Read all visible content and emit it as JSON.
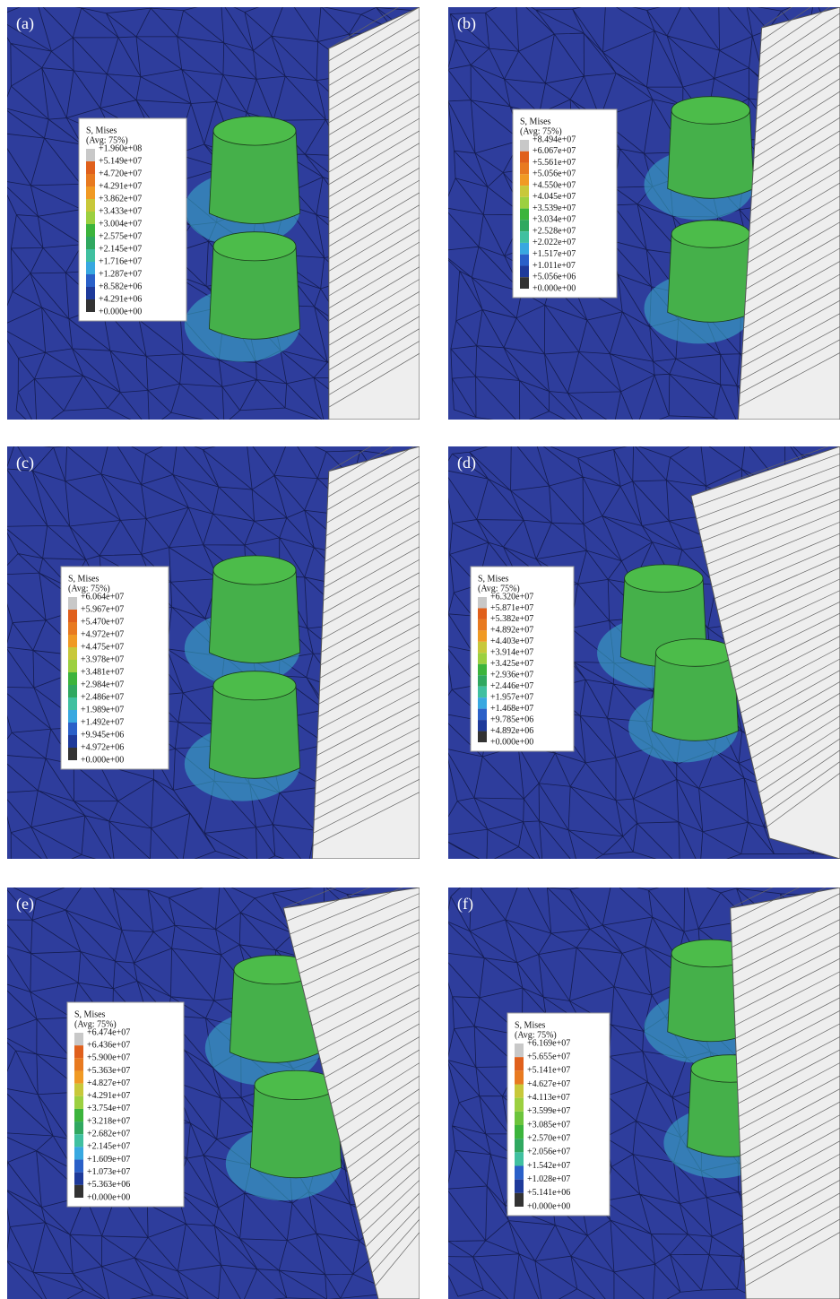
{
  "panels": [
    {
      "label": "(a)",
      "legend": {
        "title": "S, Mises",
        "subtitle": "(Avg: 75%)",
        "values": [
          "+1.960e+08",
          "+5.149e+07",
          "+4.720e+07",
          "+4.291e+07",
          "+3.862e+07",
          "+3.433e+07",
          "+3.004e+07",
          "+2.575e+07",
          "+2.145e+07",
          "+1.716e+07",
          "+1.287e+07",
          "+8.582e+06",
          "+4.291e+06",
          "+0.000e+00"
        ]
      }
    },
    {
      "label": "(b)",
      "legend": {
        "title": "S, Mises",
        "subtitle": "(Avg: 75%)",
        "values": [
          "+8.494e+07",
          "+6.067e+07",
          "+5.561e+07",
          "+5.056e+07",
          "+4.550e+07",
          "+4.045e+07",
          "+3.539e+07",
          "+3.034e+07",
          "+2.528e+07",
          "+2.022e+07",
          "+1.517e+07",
          "+1.011e+07",
          "+5.056e+06",
          "+0.000e+00"
        ]
      }
    },
    {
      "label": "(c)",
      "legend": {
        "title": "S, Mises",
        "subtitle": "(Avg: 75%)",
        "values": [
          "+6.064e+07",
          "+5.967e+07",
          "+5.470e+07",
          "+4.972e+07",
          "+4.475e+07",
          "+3.978e+07",
          "+3.481e+07",
          "+2.984e+07",
          "+2.486e+07",
          "+1.989e+07",
          "+1.492e+07",
          "+9.945e+06",
          "+4.972e+06",
          "+0.000e+00"
        ]
      }
    },
    {
      "label": "(d)",
      "legend": {
        "title": "S, Mises",
        "subtitle": "(Avg: 75%)",
        "values": [
          "+6.320e+07",
          "+5.871e+07",
          "+5.382e+07",
          "+4.892e+07",
          "+4.403e+07",
          "+3.914e+07",
          "+3.425e+07",
          "+2.936e+07",
          "+2.446e+07",
          "+1.957e+07",
          "+1.468e+07",
          "+9.785e+06",
          "+4.892e+06",
          "+0.000e+00"
        ]
      }
    },
    {
      "label": "(e)",
      "legend": {
        "title": "S, Mises",
        "subtitle": "(Avg: 75%)",
        "values": [
          "+6.474e+07",
          "+6.436e+07",
          "+5.900e+07",
          "+5.363e+07",
          "+4.827e+07",
          "+4.291e+07",
          "+3.754e+07",
          "+3.218e+07",
          "+2.682e+07",
          "+2.145e+07",
          "+1.609e+07",
          "+1.073e+07",
          "+5.363e+06",
          "+0.000e+00"
        ]
      }
    },
    {
      "label": "(f)",
      "legend": {
        "title": "S, Mises",
        "subtitle": "(Avg: 75%)",
        "values": [
          "+6.169e+07",
          "+5.655e+07",
          "+5.141e+07",
          "+4.627e+07",
          "+4.113e+07",
          "+3.599e+07",
          "+3.085e+07",
          "+2.570e+07",
          "+2.056e+07",
          "+1.542e+07",
          "+1.028e+07",
          "+5.141e+06",
          "+0.000e+00"
        ]
      }
    }
  ]
}
